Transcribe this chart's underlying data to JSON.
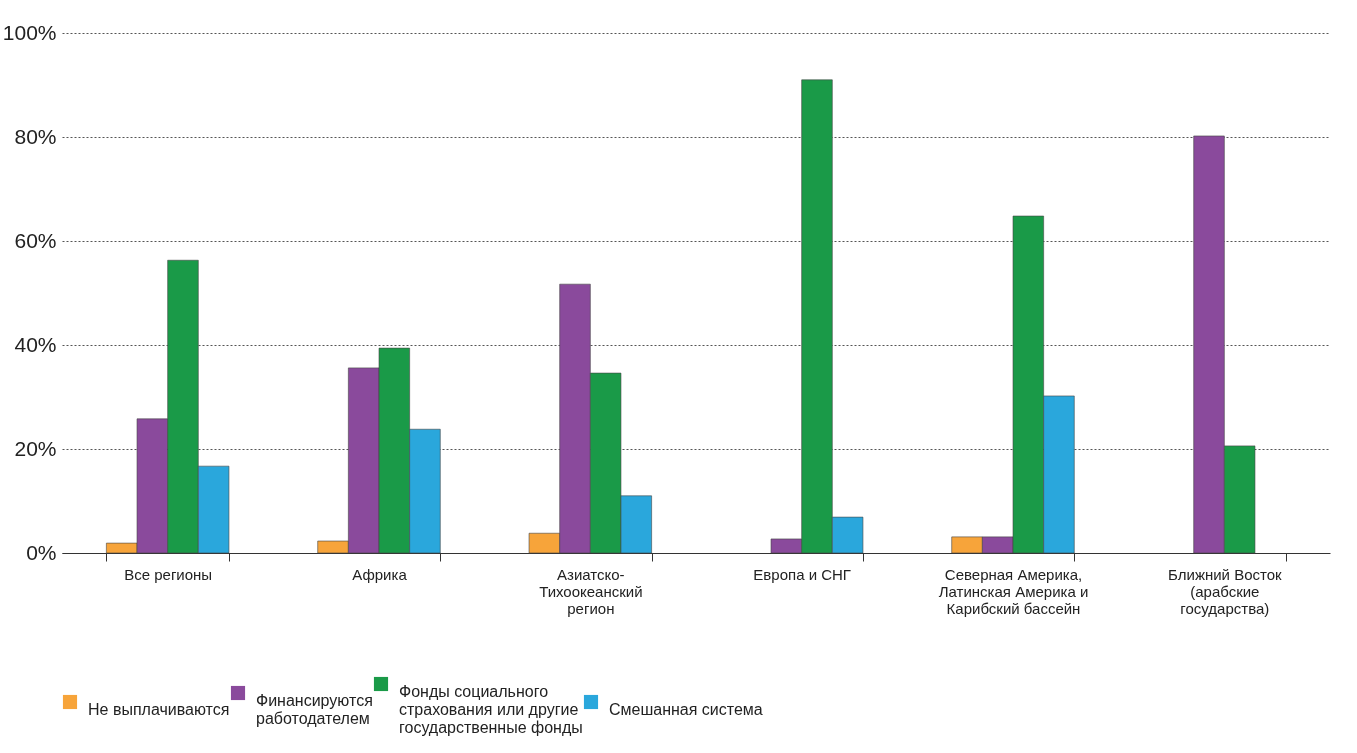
{
  "chart_data": {
    "type": "bar",
    "categories": [
      "Все регионы",
      "Африка",
      "Азиатско-Тихоокеанский регион",
      "Европа и СНГ",
      "Северная Америка, Латинская Америка и Карибский бассейн",
      "Ближний Восток (арабские государства)"
    ],
    "series": [
      {
        "name": "Не выплачиваются",
        "color": "#f7a43a",
        "values": [
          1.9,
          2.3,
          3.8,
          null,
          3.1,
          null
        ]
      },
      {
        "name": "Финансируются работодателем",
        "color": "#8a4a9c",
        "values": [
          25.8,
          35.6,
          51.7,
          2.7,
          3.1,
          80.2
        ]
      },
      {
        "name": "Фонды социального страхования или другие государственные фонды",
        "color": "#1a9a48",
        "values": [
          56.3,
          39.4,
          34.6,
          91.0,
          64.8,
          20.6
        ]
      },
      {
        "name": "Смешанная система",
        "color": "#2aa7dc",
        "values": [
          16.7,
          23.8,
          11.0,
          6.9,
          30.2,
          null
        ]
      }
    ],
    "ylim": [
      0,
      100
    ],
    "yticks": [
      {
        "value": 0,
        "label": "0%"
      },
      {
        "value": 20,
        "label": "20%"
      },
      {
        "value": 40,
        "label": "40%"
      },
      {
        "value": 60,
        "label": "60%"
      },
      {
        "value": 80,
        "label": "80%"
      },
      {
        "value": 100,
        "label": "100%"
      }
    ],
    "grid": "y",
    "legend": "bottom"
  }
}
